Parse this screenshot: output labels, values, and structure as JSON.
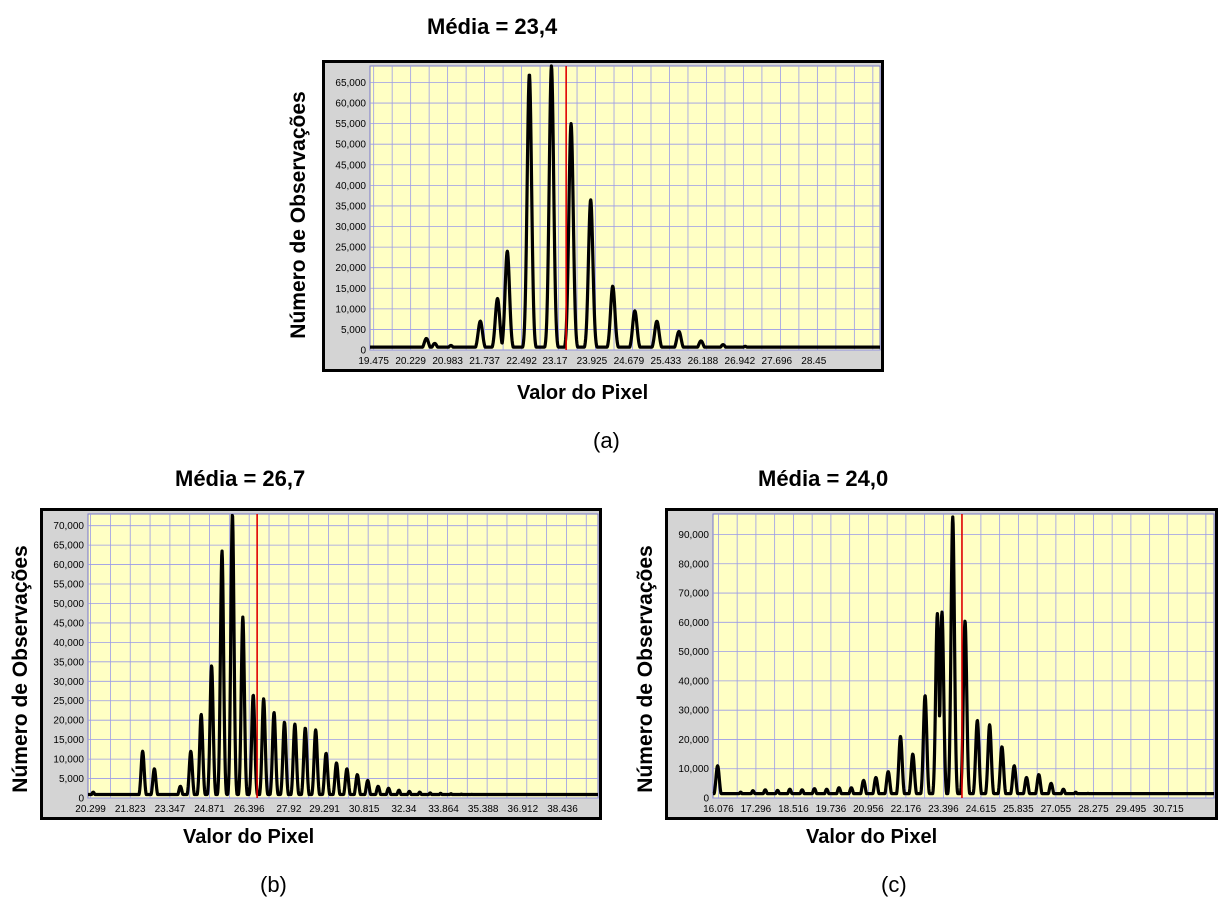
{
  "figures": [
    {
      "title": "Média = 23,4",
      "ylabel": "Número de Observações",
      "xlabel": "Valor do Pixel",
      "caption": "(a)"
    },
    {
      "title": "Média = 26,7",
      "ylabel": "Número de Observações",
      "xlabel": "Valor do Pixel",
      "caption": "(b)"
    },
    {
      "title": "Média = 24,0",
      "ylabel": "Número de Observações",
      "xlabel": "Valor do Pixel",
      "caption": "(c)"
    }
  ],
  "colors": {
    "plot_bg": "#ffffc4",
    "grid": "#9a9ae8",
    "line": "#000000",
    "mean_line": "#e00000",
    "frame": "#000000",
    "axis_bg": "#d4d4d4"
  },
  "chart_data": [
    {
      "type": "line",
      "title": "Média = 23,4",
      "xlabel": "Valor do Pixel",
      "ylabel": "Número de Observações",
      "xlim": [
        19.4,
        29.8
      ],
      "ylim": [
        0,
        69000
      ],
      "x_tick_labels": [
        "19.475",
        "20.229",
        "20.983",
        "21.737",
        "22.492",
        "23.17",
        "23.925",
        "24.679",
        "25.433",
        "26.188",
        "26.942",
        "27.696",
        "28.45"
      ],
      "x_ticks": [
        19.475,
        20.229,
        20.983,
        21.737,
        22.492,
        23.17,
        23.925,
        24.679,
        25.433,
        26.188,
        26.942,
        27.696,
        28.45
      ],
      "y_ticks": [
        0,
        5000,
        10000,
        15000,
        20000,
        25000,
        30000,
        35000,
        40000,
        45000,
        50000,
        55000,
        60000,
        65000
      ],
      "y_tick_labels": [
        "0",
        "5,000",
        "10,000",
        "15,000",
        "20,000",
        "25,000",
        "30,000",
        "35,000",
        "40,000",
        "45,000",
        "50,000",
        "55,000",
        "60,000",
        "65,000"
      ],
      "mean": 23.4,
      "peak_width": 0.045,
      "baseline": 700,
      "peaks": [
        [
          20.55,
          2800
        ],
        [
          20.72,
          1600
        ],
        [
          21.05,
          1100
        ],
        [
          21.65,
          7000
        ],
        [
          22.0,
          12500
        ],
        [
          22.2,
          24000
        ],
        [
          22.65,
          67000
        ],
        [
          23.1,
          69000
        ],
        [
          23.5,
          55000
        ],
        [
          23.9,
          36500
        ],
        [
          24.35,
          15500
        ],
        [
          24.8,
          9500
        ],
        [
          25.25,
          7000
        ],
        [
          25.7,
          4500
        ],
        [
          26.15,
          2200
        ],
        [
          26.6,
          1300
        ],
        [
          27.05,
          900
        ],
        [
          27.5,
          700
        ]
      ],
      "grid": true
    },
    {
      "type": "line",
      "title": "Média = 26,7",
      "xlabel": "Valor do Pixel",
      "ylabel": "Número de Observações",
      "xlim": [
        20.2,
        39.8
      ],
      "ylim": [
        0,
        73000
      ],
      "x_tick_labels": [
        "20.299",
        "21.823",
        "23.347",
        "24.871",
        "26.396",
        "27.92",
        "29.291",
        "30.815",
        "32.34",
        "33.864",
        "35.388",
        "36.912",
        "38.436"
      ],
      "x_ticks": [
        20.299,
        21.823,
        23.347,
        24.871,
        26.396,
        27.92,
        29.291,
        30.815,
        32.34,
        33.864,
        35.388,
        36.912,
        38.436
      ],
      "y_ticks": [
        0,
        5000,
        10000,
        15000,
        20000,
        25000,
        30000,
        35000,
        40000,
        45000,
        50000,
        55000,
        60000,
        65000,
        70000
      ],
      "y_tick_labels": [
        "0",
        "5,000",
        "10,000",
        "15,000",
        "20,000",
        "25,000",
        "30,000",
        "35,000",
        "40,000",
        "45,000",
        "50,000",
        "55,000",
        "60,000",
        "65,000",
        "70,000"
      ],
      "mean": 26.7,
      "peak_width": 0.06,
      "baseline": 900,
      "peaks": [
        [
          20.4,
          1500
        ],
        [
          22.3,
          12000
        ],
        [
          22.75,
          7500
        ],
        [
          23.75,
          3000
        ],
        [
          24.15,
          12000
        ],
        [
          24.55,
          21500
        ],
        [
          24.95,
          34000
        ],
        [
          25.35,
          63500
        ],
        [
          25.75,
          73000
        ],
        [
          26.15,
          46500
        ],
        [
          26.55,
          26500
        ],
        [
          26.95,
          25500
        ],
        [
          27.35,
          22000
        ],
        [
          27.75,
          19500
        ],
        [
          28.15,
          19000
        ],
        [
          28.55,
          18000
        ],
        [
          28.95,
          17500
        ],
        [
          29.35,
          11500
        ],
        [
          29.75,
          9000
        ],
        [
          30.15,
          7500
        ],
        [
          30.55,
          6000
        ],
        [
          30.95,
          4500
        ],
        [
          31.35,
          3000
        ],
        [
          31.75,
          2500
        ],
        [
          32.15,
          2000
        ],
        [
          32.55,
          1700
        ],
        [
          32.95,
          1500
        ],
        [
          33.35,
          1300
        ],
        [
          33.75,
          1200
        ],
        [
          34.15,
          1100
        ],
        [
          34.55,
          1000
        ],
        [
          34.95,
          950
        ],
        [
          35.35,
          900
        ],
        [
          35.75,
          900
        ],
        [
          36.15,
          900
        ]
      ],
      "grid": true
    },
    {
      "type": "line",
      "title": "Média = 24,0",
      "xlabel": "Valor do Pixel",
      "ylabel": "Número de Observações",
      "xlim": [
        15.9,
        32.2
      ],
      "ylim": [
        0,
        97000
      ],
      "x_tick_labels": [
        "16.076",
        "17.296",
        "18.516",
        "19.736",
        "20.956",
        "22.176",
        "23.396",
        "24.615",
        "25.835",
        "27.055",
        "28.275",
        "29.495",
        "30.715"
      ],
      "x_ticks": [
        16.076,
        17.296,
        18.516,
        19.736,
        20.956,
        22.176,
        23.396,
        24.615,
        25.835,
        27.055,
        28.275,
        29.495,
        30.715
      ],
      "y_ticks": [
        0,
        10000,
        20000,
        30000,
        40000,
        50000,
        60000,
        70000,
        80000,
        90000
      ],
      "y_tick_labels": [
        "0",
        "10,000",
        "20,000",
        "30,000",
        "40,000",
        "50,000",
        "60,000",
        "70,000",
        "80,000",
        "90,000"
      ],
      "mean": 24.0,
      "peak_width": 0.055,
      "baseline": 1500,
      "peaks": [
        [
          16.05,
          11000
        ],
        [
          16.8,
          2000
        ],
        [
          17.2,
          2500
        ],
        [
          17.6,
          2800
        ],
        [
          18.0,
          2600
        ],
        [
          18.4,
          3000
        ],
        [
          18.8,
          2800
        ],
        [
          19.2,
          3200
        ],
        [
          19.6,
          3000
        ],
        [
          20.0,
          3500
        ],
        [
          20.4,
          3500
        ],
        [
          20.8,
          6000
        ],
        [
          21.2,
          7000
        ],
        [
          21.6,
          9000
        ],
        [
          22.0,
          21000
        ],
        [
          22.4,
          15000
        ],
        [
          22.8,
          35000
        ],
        [
          23.2,
          63000
        ],
        [
          23.35,
          63500
        ],
        [
          23.7,
          96000
        ],
        [
          24.1,
          60500
        ],
        [
          24.5,
          26500
        ],
        [
          24.9,
          25000
        ],
        [
          25.3,
          17500
        ],
        [
          25.7,
          11000
        ],
        [
          26.1,
          7000
        ],
        [
          26.5,
          8000
        ],
        [
          26.9,
          5000
        ],
        [
          27.3,
          3000
        ],
        [
          27.7,
          2000
        ],
        [
          28.1,
          1600
        ],
        [
          28.5,
          1500
        ]
      ],
      "grid": true
    }
  ]
}
